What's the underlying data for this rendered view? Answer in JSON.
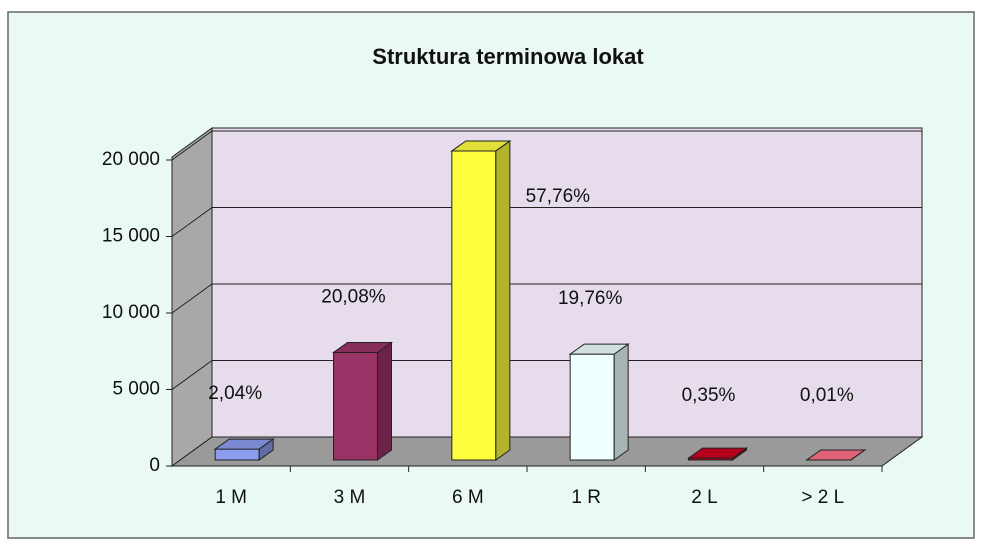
{
  "chart_data": {
    "type": "bar3d",
    "title": "Struktura terminowa lokat",
    "categories": [
      "1 M",
      "3 M",
      "6 M",
      "1 R",
      "2 L",
      "> 2 L"
    ],
    "values": [
      714,
      7030,
      20200,
      6920,
      122,
      3.5
    ],
    "annotations": [
      "2,04%",
      "20,08%",
      "57,76%",
      "19,76%",
      "0,35%",
      "0,01%"
    ],
    "colors": [
      "#8c9cf0",
      "#993366",
      "#ffff40",
      "#f0ffff",
      "#cc0020",
      "#ff6f88"
    ],
    "ylim": [
      0,
      20000
    ],
    "yticks": [
      0,
      {
        "value": 5000,
        "label": "5 000"
      },
      {
        "value": 10000,
        "label": "10 000"
      },
      {
        "value": 15000,
        "label": "15 000"
      },
      {
        "value": 20000,
        "label": "20 000"
      }
    ],
    "grid": true
  }
}
